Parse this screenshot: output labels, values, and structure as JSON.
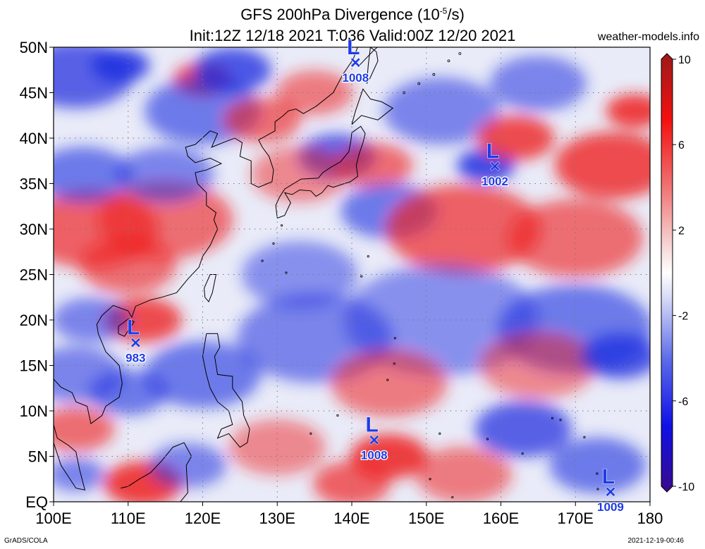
{
  "title": {
    "main": "GFS 200hPa Divergence (10",
    "exponent": "-5",
    "unit_suffix": "/s)",
    "line2": "Init:12Z 12/18 2021 T:036 Valid:00Z 12/20 2021"
  },
  "site": "weather-models.info",
  "footer": {
    "left": "GrADS/COLA",
    "right": "2021-12-19-00:46"
  },
  "map": {
    "lat_range": [
      0,
      50
    ],
    "lon_range": [
      100,
      180
    ],
    "lat_ticks": [
      {
        "value": 50,
        "label": "50N"
      },
      {
        "value": 45,
        "label": "45N"
      },
      {
        "value": 40,
        "label": "40N"
      },
      {
        "value": 35,
        "label": "35N"
      },
      {
        "value": 30,
        "label": "30N"
      },
      {
        "value": 25,
        "label": "25N"
      },
      {
        "value": 20,
        "label": "20N"
      },
      {
        "value": 15,
        "label": "15N"
      },
      {
        "value": 10,
        "label": "10N"
      },
      {
        "value": 5,
        "label": "5N"
      },
      {
        "value": 0,
        "label": "EQ"
      }
    ],
    "lon_ticks": [
      {
        "value": 100,
        "label": "100E"
      },
      {
        "value": 110,
        "label": "110E"
      },
      {
        "value": 120,
        "label": "120E"
      },
      {
        "value": 130,
        "label": "130E"
      },
      {
        "value": 140,
        "label": "140E"
      },
      {
        "value": 150,
        "label": "150E"
      },
      {
        "value": 160,
        "label": "160E"
      },
      {
        "value": 170,
        "label": "170E"
      },
      {
        "value": 180,
        "label": "180"
      }
    ],
    "lows": [
      {
        "lon": 140.5,
        "lat": 48.3,
        "label": "L",
        "pressure": "1008"
      },
      {
        "lon": 159.2,
        "lat": 36.9,
        "label": "L",
        "pressure": "1002"
      },
      {
        "lon": 111.0,
        "lat": 17.5,
        "label": "L",
        "pressure": "983"
      },
      {
        "lon": 143.0,
        "lat": 6.8,
        "label": "L",
        "pressure": "1008"
      },
      {
        "lon": 174.7,
        "lat": 1.1,
        "label": "L",
        "pressure": "1009"
      }
    ],
    "field_blobs": [
      {
        "lon": 103,
        "lat": 47,
        "r": 6,
        "sign": "neg",
        "strength": 0.8
      },
      {
        "lon": 109,
        "lat": 48,
        "r": 3,
        "sign": "neg",
        "strength": 1.0
      },
      {
        "lon": 120,
        "lat": 46.5,
        "r": 3,
        "sign": "pos",
        "strength": 0.9
      },
      {
        "lon": 124,
        "lat": 47.5,
        "r": 4,
        "sign": "neg",
        "strength": 0.9
      },
      {
        "lon": 120,
        "lat": 43,
        "r": 6,
        "sign": "neg",
        "strength": 0.6
      },
      {
        "lon": 128,
        "lat": 42,
        "r": 4,
        "sign": "pos",
        "strength": 0.6
      },
      {
        "lon": 135,
        "lat": 45,
        "r": 4,
        "sign": "pos",
        "strength": 0.5
      },
      {
        "lon": 138,
        "lat": 38,
        "r": 4,
        "sign": "neg",
        "strength": 0.8
      },
      {
        "lon": 143,
        "lat": 37,
        "r": 4,
        "sign": "pos",
        "strength": 0.6
      },
      {
        "lon": 133,
        "lat": 36,
        "r": 5,
        "sign": "pos",
        "strength": 0.4
      },
      {
        "lon": 145,
        "lat": 32,
        "r": 5,
        "sign": "neg",
        "strength": 0.6
      },
      {
        "lon": 152,
        "lat": 43,
        "r": 6,
        "sign": "neg",
        "strength": 0.5
      },
      {
        "lon": 158,
        "lat": 37,
        "r": 3,
        "sign": "neg",
        "strength": 1.0
      },
      {
        "lon": 162,
        "lat": 40,
        "r": 4,
        "sign": "pos",
        "strength": 0.9
      },
      {
        "lon": 165,
        "lat": 46,
        "r": 5,
        "sign": "neg",
        "strength": 0.5
      },
      {
        "lon": 175,
        "lat": 37,
        "r": 6,
        "sign": "pos",
        "strength": 0.9
      },
      {
        "lon": 178,
        "lat": 43,
        "r": 3,
        "sign": "pos",
        "strength": 1.0
      },
      {
        "lon": 155,
        "lat": 30,
        "r": 8,
        "sign": "pos",
        "strength": 0.7
      },
      {
        "lon": 170,
        "lat": 29,
        "r": 7,
        "sign": "pos",
        "strength": 0.6
      },
      {
        "lon": 105,
        "lat": 30,
        "r": 7,
        "sign": "pos",
        "strength": 0.7
      },
      {
        "lon": 115,
        "lat": 31,
        "r": 7,
        "sign": "pos",
        "strength": 0.6
      },
      {
        "lon": 104,
        "lat": 36,
        "r": 5,
        "sign": "neg",
        "strength": 0.6
      },
      {
        "lon": 115,
        "lat": 36,
        "r": 5,
        "sign": "neg",
        "strength": 0.5
      },
      {
        "lon": 110,
        "lat": 26,
        "r": 5,
        "sign": "pos",
        "strength": 0.6
      },
      {
        "lon": 112,
        "lat": 20,
        "r": 4,
        "sign": "pos",
        "strength": 0.9
      },
      {
        "lon": 105,
        "lat": 20,
        "r": 4,
        "sign": "neg",
        "strength": 0.5
      },
      {
        "lon": 103,
        "lat": 14,
        "r": 5,
        "sign": "neg",
        "strength": 0.5
      },
      {
        "lon": 110,
        "lat": 12,
        "r": 4,
        "sign": "neg",
        "strength": 0.6
      },
      {
        "lon": 103,
        "lat": 8,
        "r": 4,
        "sign": "pos",
        "strength": 0.6
      },
      {
        "lon": 120,
        "lat": 14,
        "r": 6,
        "sign": "neg",
        "strength": 0.6
      },
      {
        "lon": 135,
        "lat": 18,
        "r": 8,
        "sign": "neg",
        "strength": 0.5
      },
      {
        "lon": 152,
        "lat": 20,
        "r": 10,
        "sign": "neg",
        "strength": 0.4
      },
      {
        "lon": 170,
        "lat": 19,
        "r": 8,
        "sign": "neg",
        "strength": 0.6
      },
      {
        "lon": 165,
        "lat": 15,
        "r": 6,
        "sign": "pos",
        "strength": 0.4
      },
      {
        "lon": 176,
        "lat": 16,
        "r": 4,
        "sign": "neg",
        "strength": 0.9
      },
      {
        "lon": 145,
        "lat": 13,
        "r": 6,
        "sign": "pos",
        "strength": 0.5
      },
      {
        "lon": 145,
        "lat": 5,
        "r": 4,
        "sign": "pos",
        "strength": 1.0
      },
      {
        "lon": 140,
        "lat": 2,
        "r": 4,
        "sign": "pos",
        "strength": 0.7
      },
      {
        "lon": 155,
        "lat": 3,
        "r": 5,
        "sign": "pos",
        "strength": 0.5
      },
      {
        "lon": 163,
        "lat": 8,
        "r": 5,
        "sign": "neg",
        "strength": 0.8
      },
      {
        "lon": 173,
        "lat": 4,
        "r": 5,
        "sign": "neg",
        "strength": 0.6
      },
      {
        "lon": 112,
        "lat": 2,
        "r": 4,
        "sign": "pos",
        "strength": 1.0
      },
      {
        "lon": 118,
        "lat": 4,
        "r": 4,
        "sign": "neg",
        "strength": 0.5
      },
      {
        "lon": 130,
        "lat": 6,
        "r": 5,
        "sign": "pos",
        "strength": 0.4
      },
      {
        "lon": 103,
        "lat": 3,
        "r": 3,
        "sign": "neg",
        "strength": 0.5
      },
      {
        "lon": 133,
        "lat": 25,
        "r": 6,
        "sign": "neg",
        "strength": 0.4
      }
    ]
  },
  "colorbar": {
    "min": -10,
    "max": 10,
    "ticks": [
      {
        "value": 10,
        "label": "10"
      },
      {
        "value": 6,
        "label": "6"
      },
      {
        "value": 2,
        "label": "2"
      },
      {
        "value": -2,
        "label": "-2"
      },
      {
        "value": -6,
        "label": "-6"
      },
      {
        "value": -10,
        "label": "-10"
      }
    ],
    "stops": [
      {
        "value": -10,
        "color": "#3a0a8c"
      },
      {
        "value": -7,
        "color": "#1010e6"
      },
      {
        "value": -4,
        "color": "#5a6ae8"
      },
      {
        "value": -1,
        "color": "#dde0f7"
      },
      {
        "value": 0,
        "color": "#ffffff"
      },
      {
        "value": 1,
        "color": "#f7dede"
      },
      {
        "value": 4,
        "color": "#f07070"
      },
      {
        "value": 7,
        "color": "#f21010"
      },
      {
        "value": 10,
        "color": "#9c1a1a"
      }
    ]
  },
  "colors": {
    "low_marker": "#1e3ce6",
    "positive": "#ee2020",
    "negative": "#2030e0"
  }
}
